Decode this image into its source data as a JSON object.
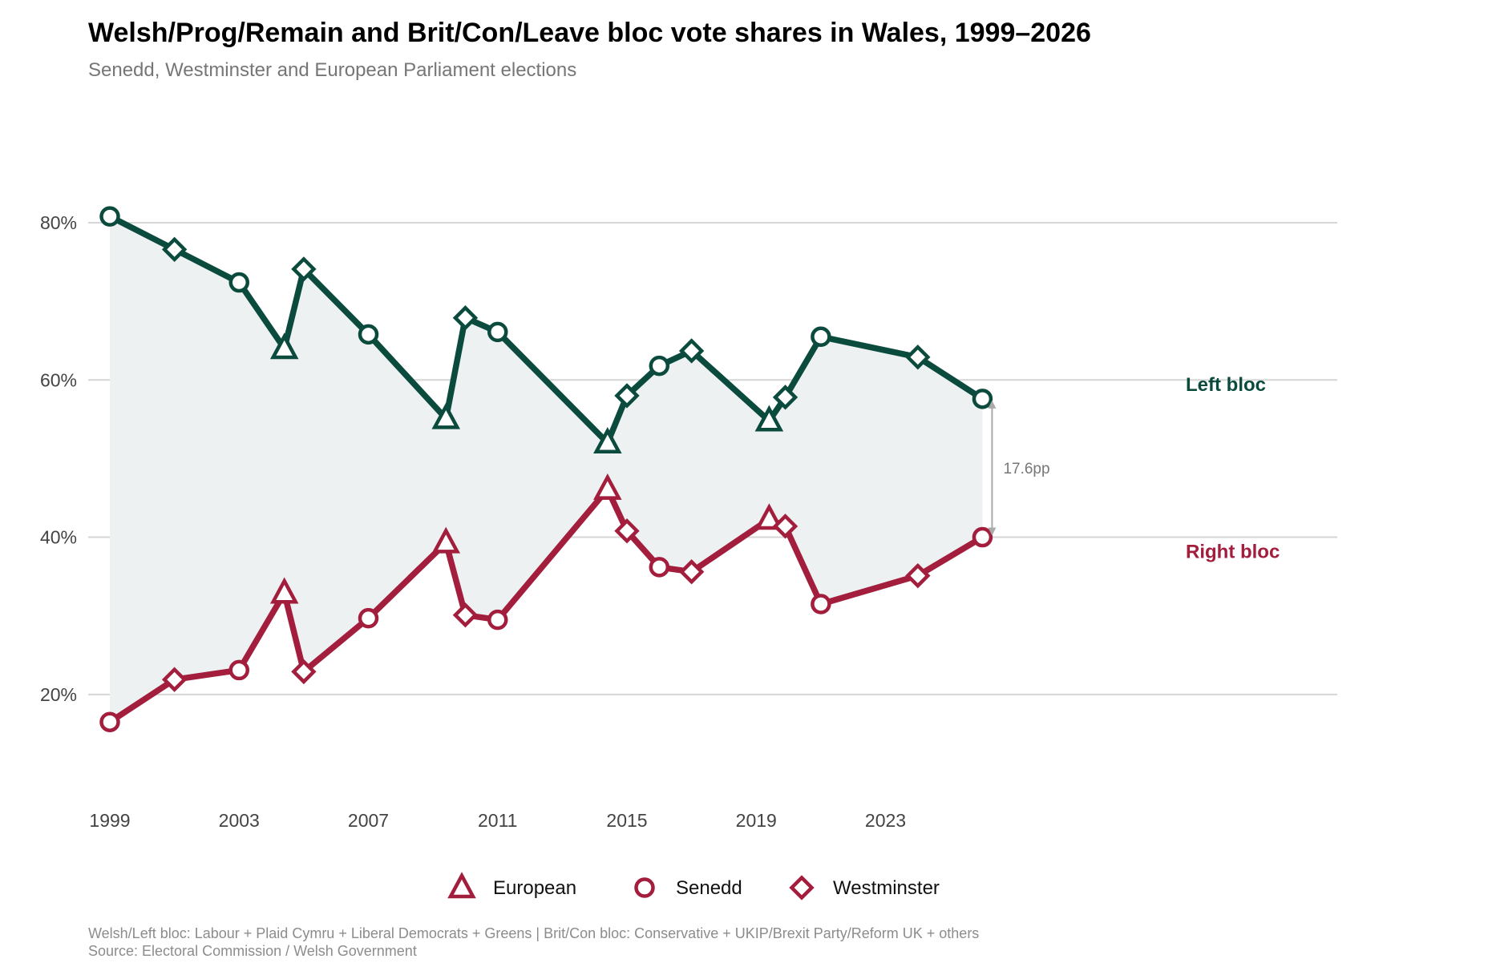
{
  "title": "Welsh/Prog/Remain and Brit/Con/Leave bloc vote shares in Wales, 1999–2026",
  "subtitle": "Senedd, Westminster and European Parliament elections",
  "footnote": "Welsh/Left bloc: Labour + Plaid Cymru + Liberal Democrats + Greens  |  Brit/Con bloc: Conservative + UKIP/Brexit Party/Reform UK + others",
  "source": "Source: Electoral Commission / Welsh Government",
  "colors": {
    "left": "#0b4b3d",
    "right": "#a31d3d",
    "fill": "#eef1f1",
    "grid": "#d6d6d6",
    "gap_arrow": "#aaaaaa"
  },
  "chart_data": {
    "type": "line",
    "x_ticks": [
      1999,
      2003,
      2007,
      2011,
      2015,
      2019,
      2023
    ],
    "y_ticks": [
      20,
      40,
      60,
      80
    ],
    "y_tick_labels": [
      "20%",
      "40%",
      "60%",
      "80%"
    ],
    "xlim": [
      1999,
      2031
    ],
    "ylim": [
      10,
      91
    ],
    "grid": "horizontal",
    "band_fill": true,
    "elections": [
      {
        "year": 1999.0,
        "type": "Senedd",
        "left": 80.8,
        "right": 16.5
      },
      {
        "year": 2001.0,
        "type": "Westminster",
        "left": 76.6,
        "right": 21.9
      },
      {
        "year": 2003.0,
        "type": "Senedd",
        "left": 72.4,
        "right": 23.1
      },
      {
        "year": 2004.4,
        "type": "European",
        "left": 64.0,
        "right": 32.9
      },
      {
        "year": 2005.0,
        "type": "Westminster",
        "left": 74.1,
        "right": 22.9
      },
      {
        "year": 2007.0,
        "type": "Senedd",
        "left": 65.8,
        "right": 29.7
      },
      {
        "year": 2009.4,
        "type": "European",
        "left": 55.1,
        "right": 39.3
      },
      {
        "year": 2010.0,
        "type": "Westminster",
        "left": 67.9,
        "right": 30.1
      },
      {
        "year": 2011.0,
        "type": "Senedd",
        "left": 66.1,
        "right": 29.5
      },
      {
        "year": 2014.4,
        "type": "European",
        "left": 52.0,
        "right": 46.1
      },
      {
        "year": 2015.0,
        "type": "Westminster",
        "left": 58.0,
        "right": 40.8
      },
      {
        "year": 2016.0,
        "type": "Senedd",
        "left": 61.8,
        "right": 36.2
      },
      {
        "year": 2017.0,
        "type": "Westminster",
        "left": 63.7,
        "right": 35.6
      },
      {
        "year": 2019.4,
        "type": "European",
        "left": 54.8,
        "right": 42.3
      },
      {
        "year": 2019.9,
        "type": "Westminster",
        "left": 57.8,
        "right": 41.4
      },
      {
        "year": 2021.0,
        "type": "Senedd",
        "left": 65.5,
        "right": 31.5
      },
      {
        "year": 2024.0,
        "type": "Westminster",
        "left": 62.9,
        "right": 35.1
      },
      {
        "year": 2026.0,
        "type": "Senedd",
        "left": 57.6,
        "right": 40.0
      }
    ],
    "series": [
      {
        "name": "Left bloc",
        "key": "left"
      },
      {
        "name": "Right bloc",
        "key": "right"
      }
    ],
    "annotation": {
      "year": 2026.0,
      "text": "17.6pp"
    },
    "legend": {
      "position": "bottom",
      "items": [
        {
          "label": "European",
          "marker": "triangle"
        },
        {
          "label": "Senedd",
          "marker": "circle"
        },
        {
          "label": "Westminster",
          "marker": "diamond"
        }
      ]
    }
  }
}
